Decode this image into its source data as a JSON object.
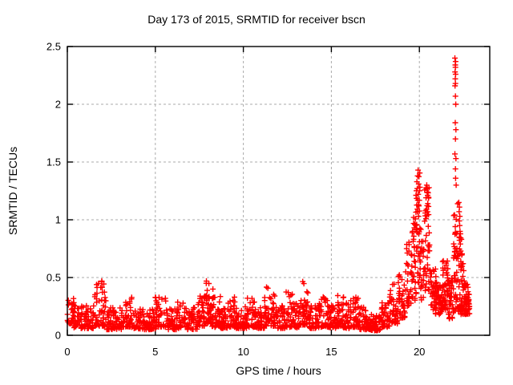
{
  "window": {
    "background": "#ffffff"
  },
  "chart_data": {
    "type": "scatter",
    "title": "Day 173 of 2015, SRMTID for receiver bscn",
    "xlabel": "GPS time / hours",
    "ylabel": "SRMTID / TECUs",
    "xlim": [
      0,
      24
    ],
    "ylim": [
      0,
      2.5
    ],
    "xticks": [
      0,
      5,
      10,
      15,
      20
    ],
    "xtick_labels": [
      "0",
      "5",
      "10",
      "15",
      "20"
    ],
    "yticks": [
      0,
      0.5,
      1,
      1.5,
      2,
      2.5
    ],
    "ytick_labels": [
      "0",
      "0.5",
      "1",
      "1.5",
      "2",
      "2.5"
    ],
    "grid": {
      "show": true,
      "color": "#ababab",
      "dash": "3,3"
    },
    "axis_color": "#000000",
    "marker": {
      "shape": "plus",
      "color": "#ff0000",
      "size": 7,
      "stroke_width": 1.4
    },
    "legend": {
      "shown": false
    },
    "prng_seed": 42,
    "noise_bands": [
      [
        0.0,
        0.4,
        0.1,
        0.32,
        28,
        1.6
      ],
      [
        0.3,
        1.5,
        0.06,
        0.26,
        85,
        1.8
      ],
      [
        1.5,
        2.2,
        0.08,
        0.47,
        58,
        2.1
      ],
      [
        2.2,
        3.2,
        0.05,
        0.24,
        70,
        1.8
      ],
      [
        3.2,
        3.7,
        0.07,
        0.33,
        38,
        2.0
      ],
      [
        3.7,
        5.0,
        0.05,
        0.24,
        90,
        1.8
      ],
      [
        5.0,
        5.6,
        0.07,
        0.33,
        42,
        2.0
      ],
      [
        5.6,
        6.3,
        0.05,
        0.24,
        48,
        1.8
      ],
      [
        6.2,
        6.7,
        0.06,
        0.29,
        35,
        2.0
      ],
      [
        6.7,
        7.4,
        0.05,
        0.24,
        48,
        1.8
      ],
      [
        7.4,
        7.8,
        0.08,
        0.38,
        36,
        1.8
      ],
      [
        7.8,
        8.3,
        0.1,
        0.47,
        48,
        1.7
      ],
      [
        8.2,
        8.7,
        0.07,
        0.35,
        36,
        1.9
      ],
      [
        8.6,
        9.1,
        0.06,
        0.25,
        38,
        1.8
      ],
      [
        9.1,
        9.6,
        0.07,
        0.35,
        40,
        2.0
      ],
      [
        9.6,
        10.2,
        0.06,
        0.25,
        45,
        1.8
      ],
      [
        10.2,
        10.7,
        0.07,
        0.33,
        40,
        2.0
      ],
      [
        10.7,
        11.2,
        0.06,
        0.25,
        40,
        1.8
      ],
      [
        11.2,
        11.8,
        0.08,
        0.42,
        50,
        2.0
      ],
      [
        11.8,
        12.4,
        0.06,
        0.26,
        45,
        1.8
      ],
      [
        12.4,
        12.9,
        0.07,
        0.38,
        40,
        2.0
      ],
      [
        12.9,
        13.2,
        0.06,
        0.28,
        24,
        1.8
      ],
      [
        13.2,
        13.7,
        0.09,
        0.47,
        46,
        1.9
      ],
      [
        13.7,
        14.3,
        0.06,
        0.26,
        44,
        1.8
      ],
      [
        14.3,
        14.9,
        0.07,
        0.35,
        42,
        2.0
      ],
      [
        14.9,
        15.3,
        0.06,
        0.26,
        30,
        1.8
      ],
      [
        15.3,
        15.7,
        0.07,
        0.36,
        36,
        2.0
      ],
      [
        15.7,
        16.1,
        0.06,
        0.28,
        30,
        1.8
      ],
      [
        16.1,
        16.6,
        0.07,
        0.33,
        40,
        1.9
      ],
      [
        16.6,
        17.2,
        0.05,
        0.25,
        45,
        1.8
      ],
      [
        17.2,
        17.8,
        0.04,
        0.18,
        46,
        1.5
      ],
      [
        17.8,
        18.3,
        0.07,
        0.32,
        40,
        1.7
      ],
      [
        18.3,
        18.8,
        0.1,
        0.45,
        40,
        1.5
      ],
      [
        18.8,
        19.2,
        0.15,
        0.55,
        38,
        1.4
      ],
      [
        19.2,
        19.55,
        0.25,
        0.85,
        34,
        1.3
      ],
      [
        19.55,
        19.8,
        0.3,
        1.05,
        26,
        1.2
      ],
      [
        19.8,
        20.05,
        0.35,
        1.42,
        40,
        1.25
      ],
      [
        20.05,
        20.3,
        0.3,
        0.95,
        24,
        1.3
      ],
      [
        20.3,
        20.6,
        0.35,
        1.28,
        44,
        1.25
      ],
      [
        20.6,
        20.95,
        0.22,
        0.62,
        34,
        1.5
      ],
      [
        20.9,
        21.35,
        0.18,
        0.46,
        52,
        1.3
      ],
      [
        21.3,
        21.65,
        0.22,
        0.65,
        40,
        1.5
      ],
      [
        21.65,
        21.95,
        0.14,
        0.5,
        34,
        1.4
      ],
      [
        21.95,
        22.2,
        0.2,
        1.25,
        44,
        1.6
      ],
      [
        22.2,
        22.45,
        0.2,
        0.95,
        32,
        1.8
      ],
      [
        22.35,
        22.85,
        0.18,
        0.45,
        60,
        1.4
      ]
    ],
    "outlier_points": [
      [
        19.93,
        1.43
      ],
      [
        19.9,
        1.38
      ],
      [
        19.96,
        1.31
      ],
      [
        19.88,
        1.27
      ],
      [
        19.94,
        1.22
      ],
      [
        19.91,
        1.17
      ],
      [
        19.97,
        1.12
      ],
      [
        19.89,
        1.07
      ],
      [
        19.95,
        1.03
      ],
      [
        20.42,
        1.3
      ],
      [
        20.46,
        1.24
      ],
      [
        20.38,
        1.19
      ],
      [
        20.48,
        1.14
      ],
      [
        20.4,
        1.09
      ],
      [
        20.44,
        1.04
      ],
      [
        19.68,
        1.02
      ],
      [
        19.74,
        0.96
      ],
      [
        19.62,
        0.9
      ],
      [
        22.02,
        2.4
      ],
      [
        22.06,
        2.37
      ],
      [
        22.04,
        2.34
      ],
      [
        22.05,
        2.32
      ],
      [
        22.03,
        2.28
      ],
      [
        22.06,
        2.26
      ],
      [
        22.04,
        2.22
      ],
      [
        22.05,
        2.18
      ],
      [
        22.03,
        2.16
      ],
      [
        22.05,
        2.07
      ],
      [
        22.07,
        2.0
      ],
      [
        22.04,
        1.84
      ],
      [
        22.08,
        1.78
      ],
      [
        22.05,
        1.7
      ],
      [
        22.02,
        1.57
      ],
      [
        22.08,
        1.53
      ],
      [
        22.05,
        1.44
      ],
      [
        22.06,
        1.36
      ],
      [
        22.09,
        1.3
      ],
      [
        22.24,
        1.15
      ],
      [
        22.28,
        1.11
      ],
      [
        22.26,
        1.07
      ],
      [
        22.3,
        1.03
      ],
      [
        22.27,
        0.99
      ],
      [
        22.29,
        0.95
      ],
      [
        22.31,
        0.9
      ],
      [
        22.28,
        0.85
      ],
      [
        22.33,
        0.79
      ],
      [
        22.35,
        0.73
      ],
      [
        22.49,
        0.62
      ],
      [
        22.52,
        0.56
      ],
      [
        22.47,
        0.51
      ],
      [
        22.55,
        0.47
      ],
      [
        22.8,
        0.3
      ],
      [
        22.83,
        0.27
      ],
      [
        22.85,
        0.25
      ]
    ]
  }
}
